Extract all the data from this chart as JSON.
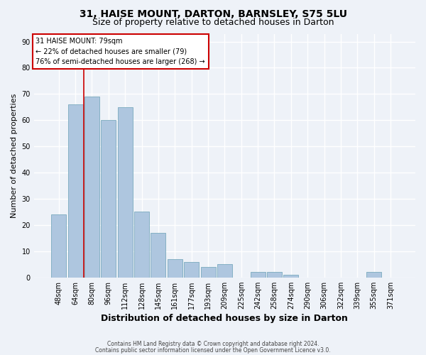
{
  "title_line1": "31, HAISE MOUNT, DARTON, BARNSLEY, S75 5LU",
  "title_line2": "Size of property relative to detached houses in Darton",
  "xlabel": "Distribution of detached houses by size in Darton",
  "ylabel": "Number of detached properties",
  "categories": [
    "48sqm",
    "64sqm",
    "80sqm",
    "96sqm",
    "112sqm",
    "128sqm",
    "145sqm",
    "161sqm",
    "177sqm",
    "193sqm",
    "209sqm",
    "225sqm",
    "242sqm",
    "258sqm",
    "274sqm",
    "290sqm",
    "306sqm",
    "322sqm",
    "339sqm",
    "355sqm",
    "371sqm"
  ],
  "values": [
    24,
    66,
    69,
    60,
    65,
    25,
    17,
    7,
    6,
    4,
    5,
    0,
    2,
    2,
    1,
    0,
    0,
    0,
    0,
    2,
    0
  ],
  "bar_color": "#aec6df",
  "bar_edge_color": "#7aaabe",
  "annotation_line1": "31 HAISE MOUNT: 79sqm",
  "annotation_line2": "← 22% of detached houses are smaller (79)",
  "annotation_line3": "76% of semi-detached houses are larger (268) →",
  "annotation_box_color": "#ffffff",
  "annotation_box_edge": "#cc0000",
  "vline_x_index": 2,
  "vline_color": "#cc0000",
  "ylim": [
    0,
    93
  ],
  "yticks": [
    0,
    10,
    20,
    30,
    40,
    50,
    60,
    70,
    80,
    90
  ],
  "footnote1": "Contains HM Land Registry data © Crown copyright and database right 2024.",
  "footnote2": "Contains public sector information licensed under the Open Government Licence v3.0.",
  "background_color": "#eef2f8",
  "grid_color": "#ffffff",
  "title_fontsize": 10,
  "subtitle_fontsize": 9,
  "tick_fontsize": 7,
  "ylabel_fontsize": 8,
  "xlabel_fontsize": 9
}
